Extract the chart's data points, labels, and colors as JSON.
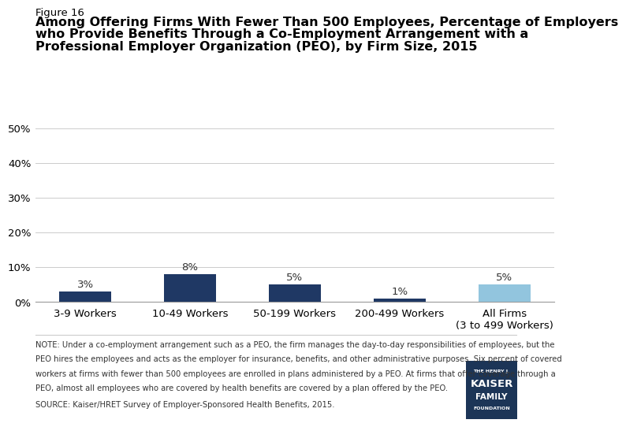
{
  "figure_label": "Figure 16",
  "title_line1": "Among Offering Firms With Fewer Than 500 Employees, Percentage of Employers",
  "title_line2": "who Provide Benefits Through a Co-Employment Arrangement with a",
  "title_line3": "Professional Employer Organization (PEO), by Firm Size, 2015",
  "categories": [
    "3-9 Workers",
    "10-49 Workers",
    "50-199 Workers",
    "200-499 Workers",
    "All Firms\n(3 to 499 Workers)"
  ],
  "values": [
    3,
    8,
    5,
    1,
    5
  ],
  "bar_colors": [
    "#1f3864",
    "#1f3864",
    "#1f3864",
    "#1f3864",
    "#92c5de"
  ],
  "value_labels": [
    "3%",
    "8%",
    "5%",
    "1%",
    "5%"
  ],
  "ylim": [
    0,
    50
  ],
  "yticks": [
    0,
    10,
    20,
    30,
    40,
    50
  ],
  "ytick_labels": [
    "0%",
    "10%",
    "20%",
    "30%",
    "40%",
    "50%"
  ],
  "background_color": "#ffffff",
  "note_line1": "NOTE: Under a co-employment arrangement such as a PEO, the firm manages the day-to-day responsibilities of employees, but the",
  "note_line2": "PEO hires the employees and acts as the employer for insurance, benefits, and other administrative purposes. Six percent of covered",
  "note_line3": "workers at firms with fewer than 500 employees are enrolled in plans administered by a PEO. At firms that offer coverage through a",
  "note_line4": "PEO, almost all employees who are covered by health benefits are covered by a plan offered by the PEO.",
  "source_text": "SOURCE: Kaiser/HRET Survey of Employer-Sponsored Health Benefits, 2015.",
  "logo_bg": "#1c3557",
  "logo_line1": "THE HENRY J.",
  "logo_line2": "KAISER",
  "logo_line3": "FAMILY",
  "logo_line4": "FOUNDATION"
}
